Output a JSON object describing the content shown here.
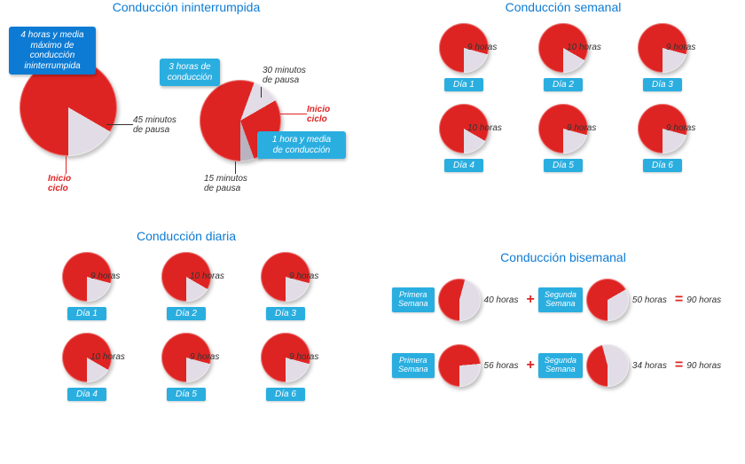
{
  "colors": {
    "red": "#de2422",
    "grey": "#e1dce5",
    "dark_grey": "#b9b3c0",
    "title_blue": "#0d7bd4",
    "callout_dark": "#0d7bd4",
    "callout_light": "#2aaee0",
    "leader": "#333333"
  },
  "uninterrupted": {
    "title": "Conducción ininterrumpida",
    "pie1": {
      "callout": "4 horas y media\nmáximo de\nconducción\nininterrumpida",
      "driving_deg": 300,
      "pause_deg": 60,
      "pause_label": "45 minutos\nde pausa",
      "inicio_label": "Inicio\nciclo"
    },
    "pie2": {
      "callout1": "3 horas de\nconducción",
      "callout2": "1 hora y media\nde conducción",
      "pause1_label": "30 minutos\nde pausa",
      "pause2_label": "15 minutos\nde pausa",
      "inicio_label": "Inicio\nciclo",
      "seg_driving1_deg": 200,
      "seg_pause1_deg": 40,
      "seg_driving2_deg": 100,
      "seg_pause2_deg": 20
    }
  },
  "daily": {
    "title": "Conducción diaria",
    "items": [
      {
        "hours_label": "9 horas",
        "driving_deg": 285,
        "day": "Día 1"
      },
      {
        "hours_label": "10 horas",
        "driving_deg": 300,
        "day": "Día 2"
      },
      {
        "hours_label": "9 horas",
        "driving_deg": 285,
        "day": "Día 3"
      },
      {
        "hours_label": "10 horas",
        "driving_deg": 300,
        "day": "Día 4"
      },
      {
        "hours_label": "9 horas",
        "driving_deg": 285,
        "day": "Día 5"
      },
      {
        "hours_label": "9 horas",
        "driving_deg": 285,
        "day": "Día 6"
      }
    ]
  },
  "weekly": {
    "title": "Conducción semanal",
    "items": [
      {
        "hours_label": "9 horas",
        "driving_deg": 285,
        "day": "Día 1"
      },
      {
        "hours_label": "10 horas",
        "driving_deg": 300,
        "day": "Día 2"
      },
      {
        "hours_label": "9 horas",
        "driving_deg": 285,
        "day": "Día 3"
      },
      {
        "hours_label": "10 horas",
        "driving_deg": 300,
        "day": "Día 4"
      },
      {
        "hours_label": "9 horas",
        "driving_deg": 285,
        "day": "Día 5"
      },
      {
        "hours_label": "9 horas",
        "driving_deg": 285,
        "day": "Día 6"
      }
    ]
  },
  "biweekly": {
    "title": "Conducción bisemanal",
    "rows": [
      {
        "week1_label": "Primera\nSemana",
        "pie1_label": "40 horas",
        "pie1_deg": 195,
        "week2_label": "Segunda\nSemana",
        "pie2_label": "50 horas",
        "pie2_deg": 240,
        "result": "90 horas"
      },
      {
        "week1_label": "Primera\nSemana",
        "pie1_label": "56 horas",
        "pie1_deg": 265,
        "week2_label": "Segunda\nSemana",
        "pie2_label": "34 horas",
        "pie2_deg": 165,
        "result": "90 horas"
      }
    ],
    "plus": "+",
    "equals": "="
  }
}
